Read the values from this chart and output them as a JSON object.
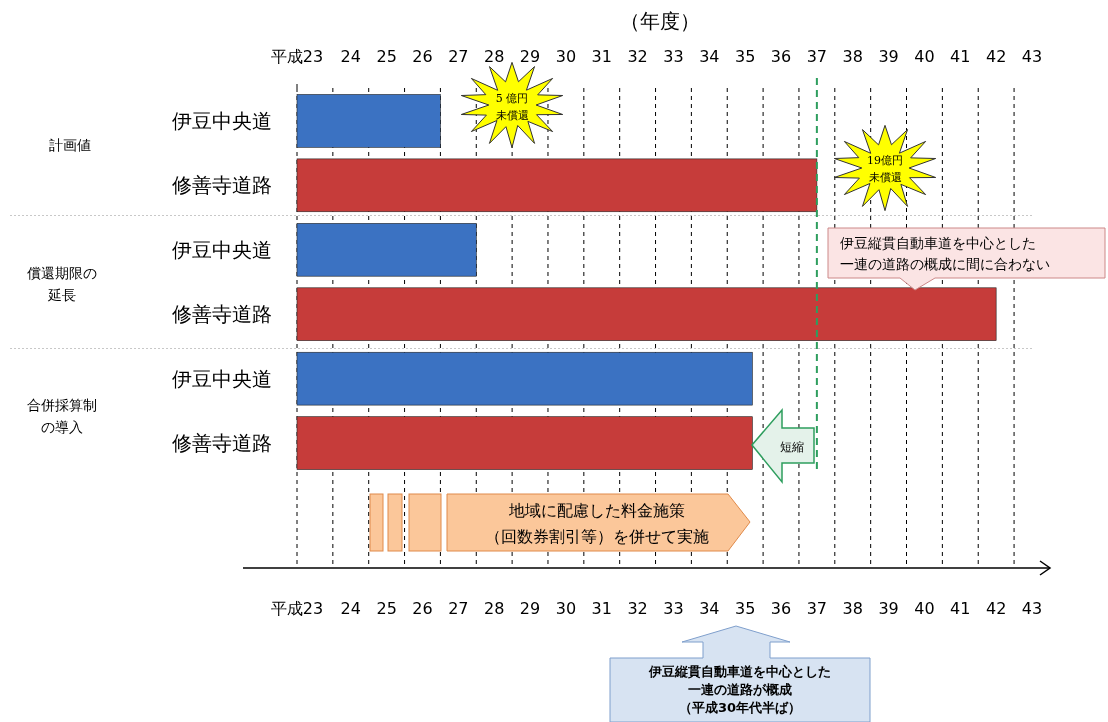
{
  "chart_data": {
    "type": "bar",
    "orientation": "horizontal",
    "title": "（年度）",
    "categories": [
      "伊豆中央道",
      "修善寺道路",
      "伊豆中央道",
      "修善寺道路",
      "伊豆中央道",
      "修善寺道路"
    ],
    "base": [
      23,
      23,
      23,
      23,
      23,
      23
    ],
    "values": [
      4,
      14.5,
      5,
      19.5,
      12.7,
      12.7
    ],
    "colors": [
      "#3b72c2",
      "#c63c3a",
      "#3b72c2",
      "#c63c3a",
      "#3b72c2",
      "#c63c3a"
    ],
    "xlim": [
      23,
      43.5
    ],
    "xticks": [
      {
        "value": 23,
        "label": "平成23"
      },
      {
        "value": 24,
        "label": null
      },
      {
        "value": 24.5,
        "label": "24"
      },
      {
        "value": 25,
        "label": null
      },
      {
        "value": 25.5,
        "label": "25"
      },
      {
        "value": 26,
        "label": null
      },
      {
        "value": 26.5,
        "label": "26"
      },
      {
        "value": 27,
        "label": null
      },
      {
        "value": 27.5,
        "label": "27"
      },
      {
        "value": 28,
        "label": null
      },
      {
        "value": 28.5,
        "label": "28"
      },
      {
        "value": 29,
        "label": null
      },
      {
        "value": 29.5,
        "label": "29"
      },
      {
        "value": 30,
        "label": null
      },
      {
        "value": 30.5,
        "label": "30"
      },
      {
        "value": 31,
        "label": null
      },
      {
        "value": 31.5,
        "label": "31"
      },
      {
        "value": 32,
        "label": null
      },
      {
        "value": 32.5,
        "label": "32"
      },
      {
        "value": 33,
        "label": null
      },
      {
        "value": 33.5,
        "label": "33"
      },
      {
        "value": 34,
        "label": null
      },
      {
        "value": 34.5,
        "label": "34"
      },
      {
        "value": 35,
        "label": null
      },
      {
        "value": 35.5,
        "label": "35"
      },
      {
        "value": 36,
        "label": null
      },
      {
        "value": 36.5,
        "label": "36"
      },
      {
        "value": 37,
        "label": null
      },
      {
        "value": 37.5,
        "label": "37"
      },
      {
        "value": 38,
        "label": null
      },
      {
        "value": 38.5,
        "label": "38"
      },
      {
        "value": 39,
        "label": null
      },
      {
        "value": 39.5,
        "label": "39"
      },
      {
        "value": 40,
        "label": null
      },
      {
        "value": 40.5,
        "label": "40"
      },
      {
        "value": 41,
        "label": null
      },
      {
        "value": 41.5,
        "label": "41"
      },
      {
        "value": 42,
        "label": null
      },
      {
        "value": 42.5,
        "label": "42"
      },
      {
        "value": 43,
        "label": null
      },
      {
        "value": 43.5,
        "label": "43"
      }
    ],
    "x2lim": [
      23,
      43.5
    ],
    "x2ticks": [
      {
        "value": 23,
        "label": "平成23"
      },
      {
        "value": 24.5,
        "label": "24"
      },
      {
        "value": 25.5,
        "label": "25"
      },
      {
        "value": 26.5,
        "label": "26"
      },
      {
        "value": 27.5,
        "label": "27"
      },
      {
        "value": 28.5,
        "label": "28"
      },
      {
        "value": 29.5,
        "label": "29"
      },
      {
        "value": 30.5,
        "label": "30"
      },
      {
        "value": 31.5,
        "label": "31"
      },
      {
        "value": 32.5,
        "label": "32"
      },
      {
        "value": 33.5,
        "label": "33"
      },
      {
        "value": 34.5,
        "label": "34"
      },
      {
        "value": 35.5,
        "label": "35"
      },
      {
        "value": 36.5,
        "label": "36"
      },
      {
        "value": 37.5,
        "label": "37"
      },
      {
        "value": 38.5,
        "label": "38"
      },
      {
        "value": 39.5,
        "label": "39"
      },
      {
        "value": 40.5,
        "label": "40"
      },
      {
        "value": 41.5,
        "label": "41"
      },
      {
        "value": 42.5,
        "label": "42"
      },
      {
        "value": 43.5,
        "label": "43"
      }
    ],
    "grid": "x",
    "ref_lines": [
      {
        "axis": "x",
        "value": 37.5,
        "color": "#2e9e5e",
        "line_style": "dashed"
      }
    ],
    "annotations": [
      "計画値",
      "償還期限の延長",
      "合併採算制の導入",
      "5 億円未償還",
      "19億円未償還",
      "伊豆縦貫自動車道を中心とした一連の道路の概成に間に合わない",
      "短縮",
      "地域に配慮した料金施策（回数券割引等）を併せて実施",
      "伊豆縦貫自動車道を中心とした一連の道路が概成（平成30年代半ば）"
    ]
  }
}
